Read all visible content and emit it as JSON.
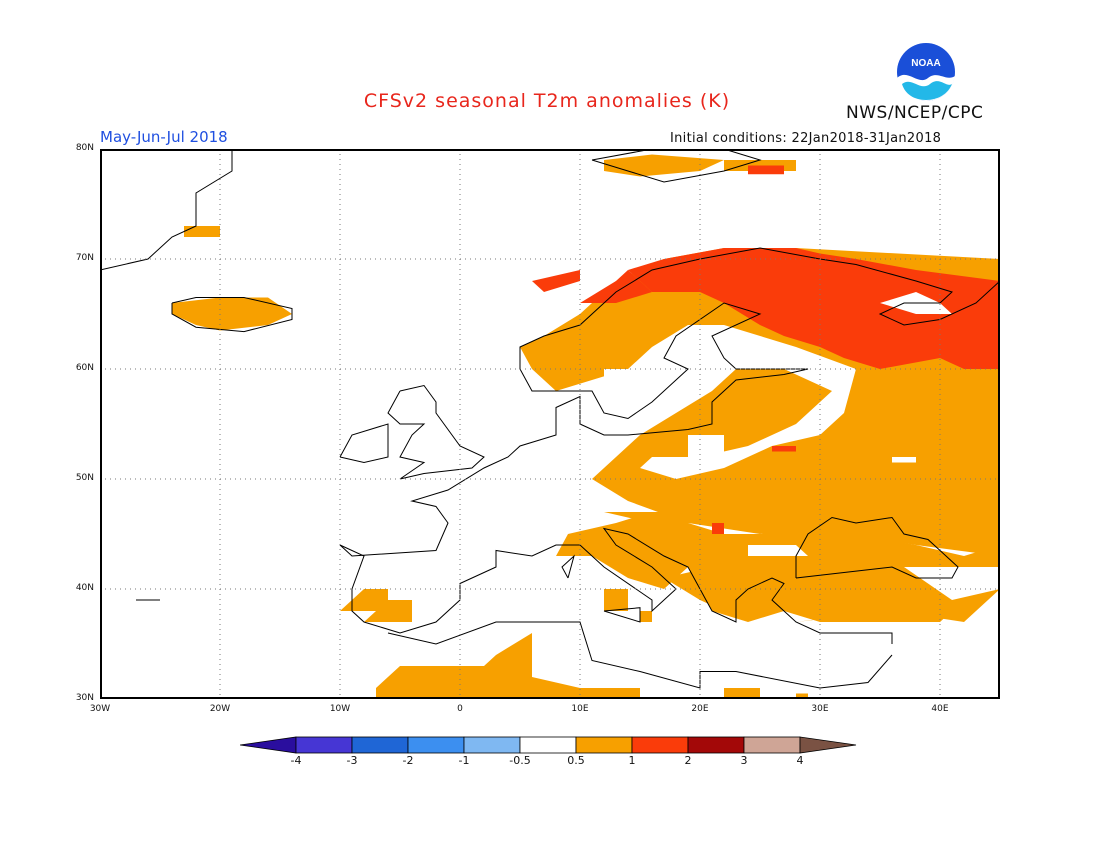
{
  "header": {
    "title": "CFSv2 seasonal T2m anomalies (K)",
    "period": "May-Jun-Jul 2018",
    "initial_conditions": "Initial conditions: 22Jan2018-31Jan2018",
    "organization": "NWS/NCEP/CPC",
    "logo_text": "NOAA"
  },
  "map": {
    "lat_labels": [
      "80N",
      "70N",
      "60N",
      "50N",
      "40N",
      "30N"
    ],
    "lon_labels": [
      "30W",
      "20W",
      "10W",
      "0",
      "10E",
      "20E",
      "30E",
      "40E"
    ],
    "lon_range": [
      -30,
      45
    ],
    "lat_range": [
      30,
      80
    ],
    "icons": [
      "coastline-icon"
    ]
  },
  "colorbar": {
    "labels": [
      "-4",
      "-3",
      "-2",
      "-1",
      "-0.5",
      "0.5",
      "1",
      "2",
      "3",
      "4"
    ],
    "colors": {
      "below_minus4": "#2a0e9e",
      "minus4_minus3": "#4636d4",
      "minus3_minus2": "#1f66d6",
      "minus2_minus1": "#3c8ff0",
      "minus1_minus05": "#7fb8f2",
      "neutral": "#ffffff",
      "p05_p1": "#f7a000",
      "p1_p2": "#fa3c0a",
      "p2_p3": "#a30808",
      "p3_p4": "#cfa596",
      "above_p4": "#7a5243"
    }
  }
}
